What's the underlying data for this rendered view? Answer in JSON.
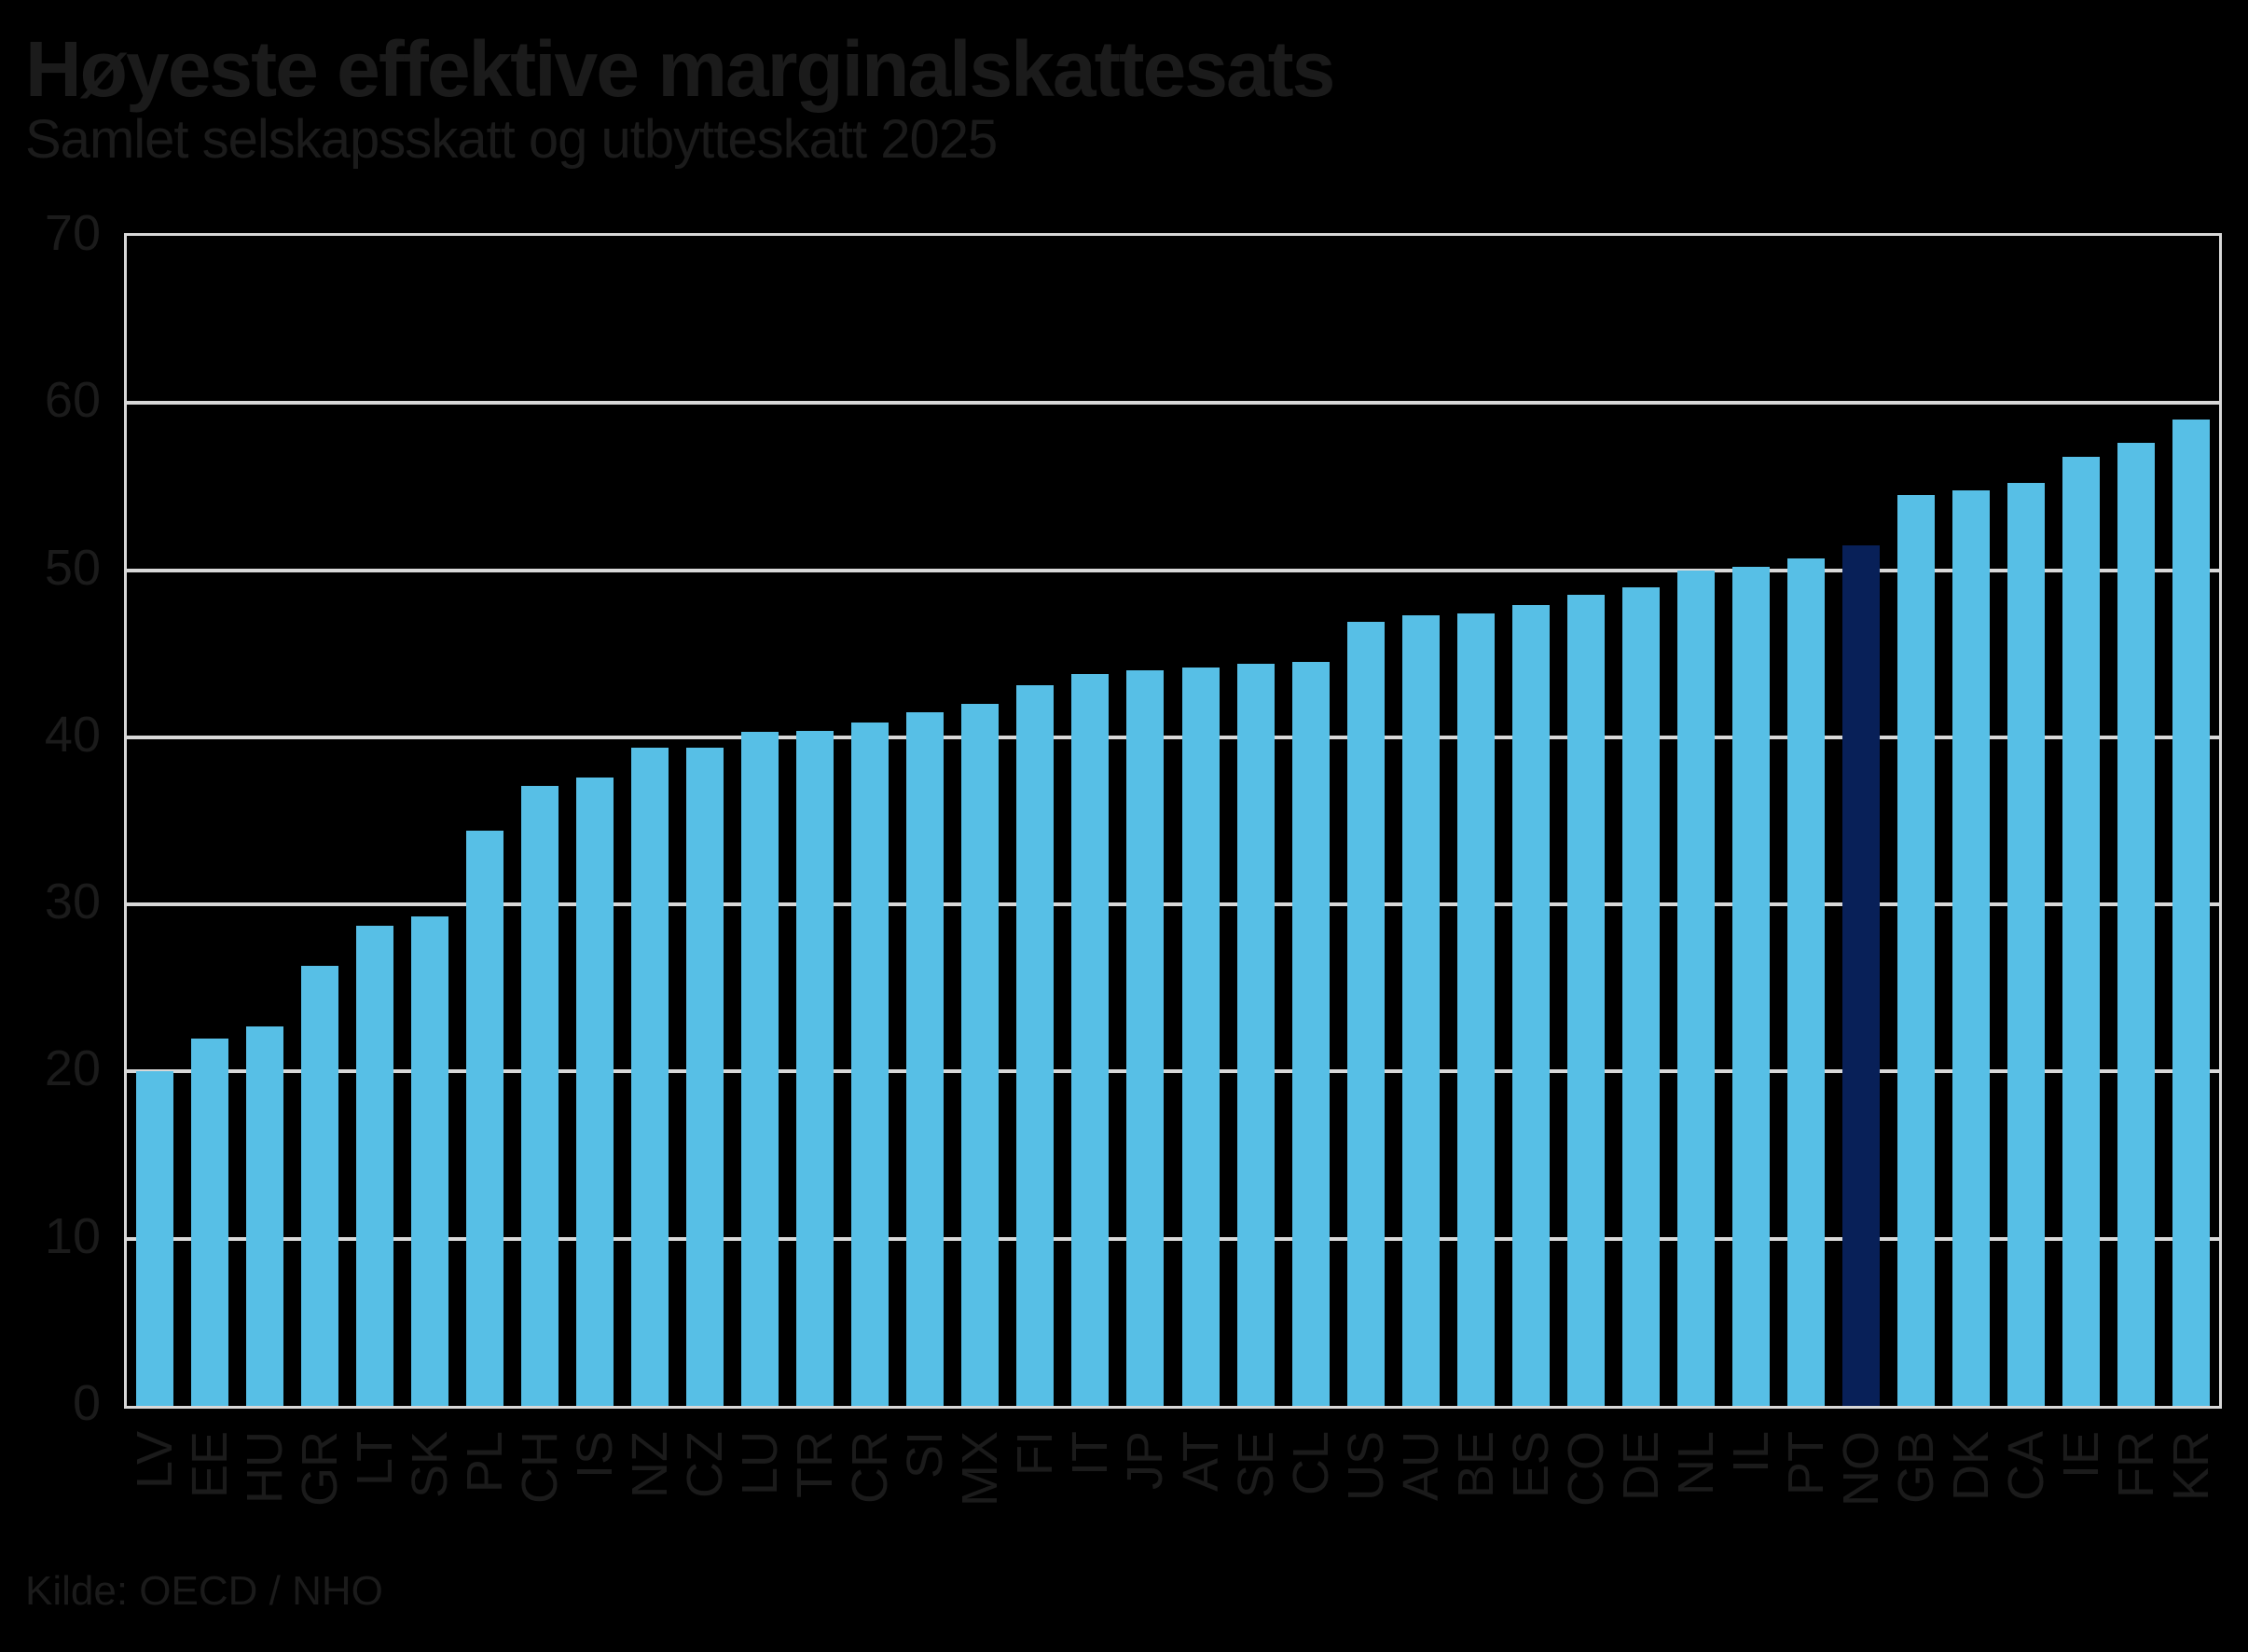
{
  "header": {
    "title": "Høyeste effektive marginalskattesats",
    "subtitle": "Samlet selskapsskatt og utbytteskatt 2025"
  },
  "source": {
    "label": "Kilde: OECD / NHO"
  },
  "chart_data": {
    "type": "bar",
    "title": "Høyeste effektive marginalskattesats",
    "subtitle": "Samlet selskapsskatt og utbytteskatt 2025",
    "xlabel": "",
    "ylabel": "",
    "ylim": [
      0,
      70
    ],
    "yticks": [
      0,
      10,
      20,
      30,
      40,
      50,
      60,
      70
    ],
    "grid": "horizontal",
    "legend": "none",
    "categories": [
      "LV",
      "EE",
      "HU",
      "GR",
      "LT",
      "SK",
      "PL",
      "CH",
      "IS",
      "NZ",
      "CZ",
      "LU",
      "TR",
      "CR",
      "SI",
      "MX",
      "FI",
      "IT",
      "JP",
      "AT",
      "SE",
      "CL",
      "US",
      "AU",
      "BE",
      "ES",
      "CO",
      "DE",
      "NL",
      "IL",
      "PT",
      "NO",
      "GB",
      "DK",
      "CA",
      "IE",
      "FR",
      "KR"
    ],
    "values": [
      20.0,
      22.0,
      22.7,
      26.3,
      28.7,
      29.3,
      34.4,
      37.1,
      37.6,
      39.4,
      39.4,
      40.3,
      40.4,
      40.9,
      41.5,
      42.0,
      43.1,
      43.8,
      44.0,
      44.2,
      44.4,
      44.5,
      46.9,
      47.3,
      47.4,
      47.9,
      48.5,
      49.0,
      50.0,
      50.2,
      50.7,
      51.5,
      54.5,
      54.8,
      55.2,
      56.8,
      57.6,
      59.0
    ],
    "highlight_category": "NO",
    "colors": {
      "bar": "#57bfe6",
      "highlight_bar": "#082058",
      "grid": "#d8d8d8",
      "background": "#000000",
      "text": "#1b1b1b"
    }
  }
}
